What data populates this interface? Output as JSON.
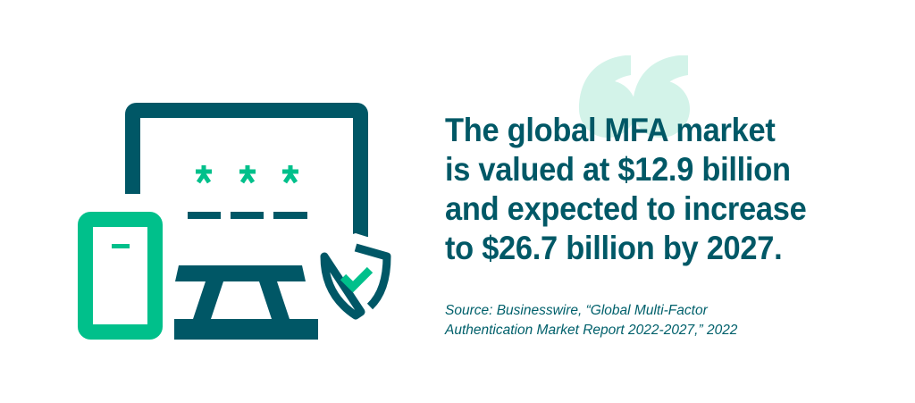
{
  "colors": {
    "primary": "#005866",
    "accent": "#00c08b",
    "quote": "#d3f3e9"
  },
  "icons": [
    "quote-mark-icon",
    "monitor-icon",
    "password-asterisk-icon",
    "smartphone-icon",
    "shield-check-icon"
  ],
  "quote": {
    "lines": [
      "The global MFA market",
      "is valued at $12.9 billion",
      "and expected to increase",
      "to $26.7 billion by 2027."
    ]
  },
  "source": {
    "lines": [
      "Source: Businesswire, “Global Multi-Factor",
      "Authentication Market Report 2022-2027,” 2022"
    ]
  }
}
